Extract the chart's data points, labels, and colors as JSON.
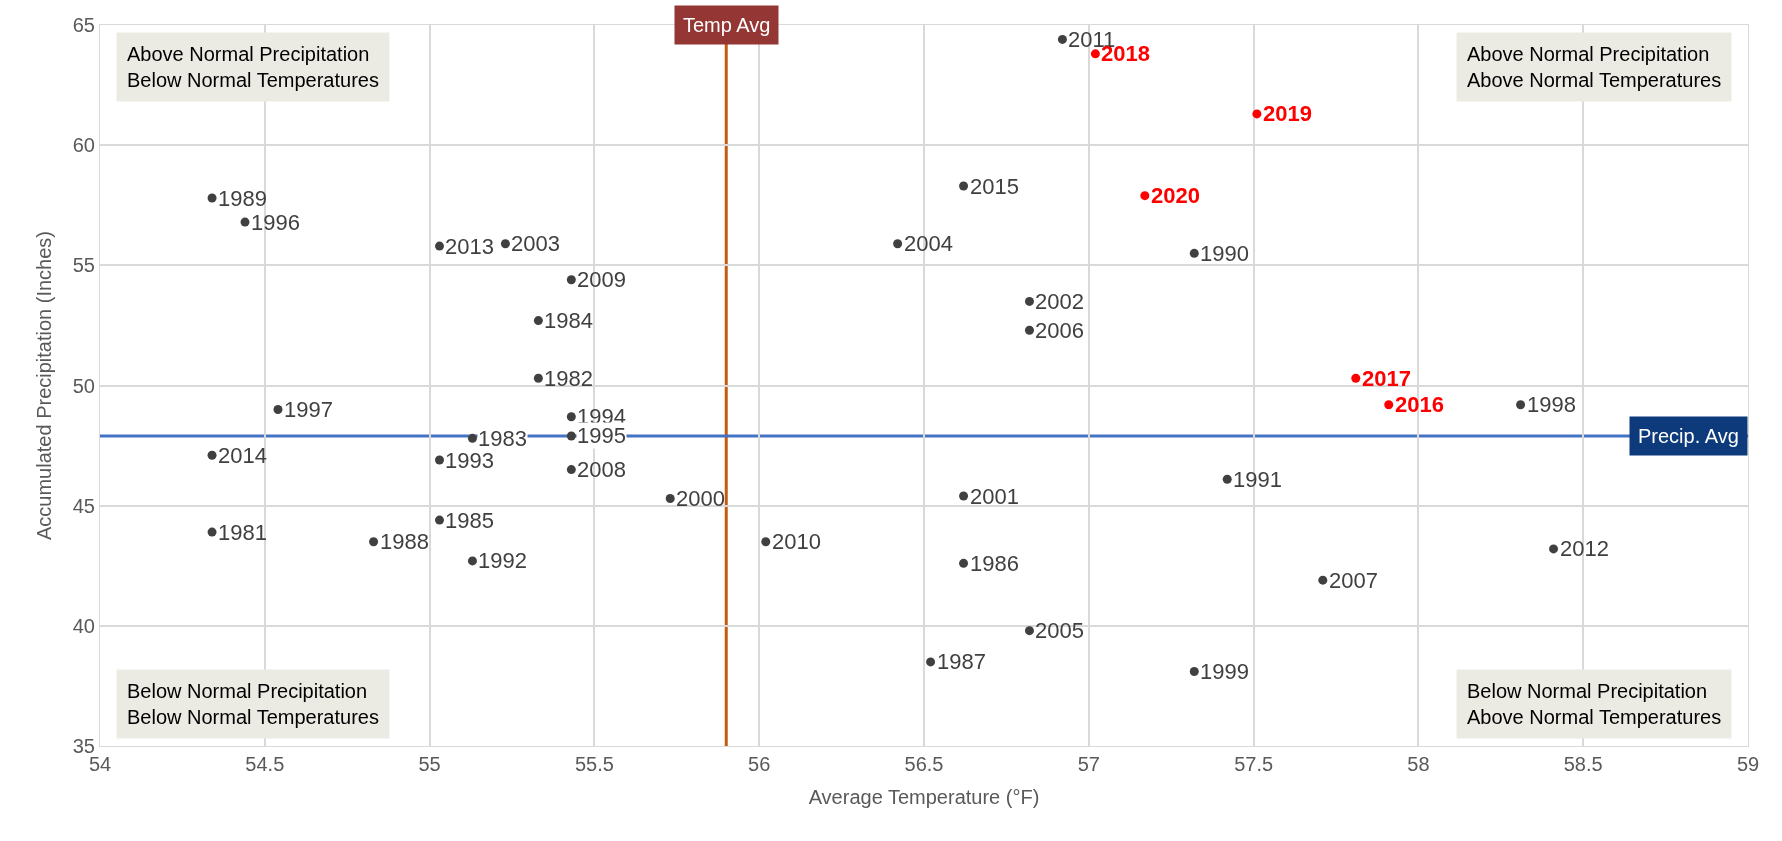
{
  "chart_data": {
    "type": "scatter",
    "xlabel": "Average Temperature (°F)",
    "ylabel": "Accumulated Precipitation (Inches)",
    "xlim": [
      54,
      59
    ],
    "xticks": [
      54,
      54.5,
      55,
      55.5,
      56,
      56.5,
      57,
      57.5,
      58,
      58.5,
      59
    ],
    "ylim": [
      35,
      65
    ],
    "yticks": [
      35,
      40,
      45,
      50,
      55,
      60,
      65
    ],
    "grid": true,
    "marker": "circle",
    "series": [
      {
        "color": "#404040",
        "x": [
          56.92,
          54.34,
          54.44,
          55.03,
          55.23,
          55.43,
          55.33,
          55.33,
          54.54,
          55.43,
          55.13,
          55.43,
          54.34,
          55.03,
          55.43,
          55.73,
          55.03,
          54.34,
          54.83,
          55.13,
          56.02,
          56.62,
          56.42,
          56.82,
          56.82,
          57.32,
          58.31,
          57.42,
          56.62,
          56.62,
          58.41,
          57.71,
          56.82,
          56.52,
          57.32
        ],
        "values": [
          64.4,
          57.8,
          56.8,
          55.8,
          55.9,
          54.4,
          52.7,
          50.3,
          49.0,
          48.7,
          47.8,
          47.9,
          47.1,
          46.9,
          46.5,
          45.3,
          44.4,
          43.9,
          43.5,
          42.7,
          43.5,
          58.3,
          55.9,
          53.5,
          52.3,
          55.5,
          49.2,
          46.1,
          45.4,
          42.6,
          43.2,
          41.9,
          39.8,
          38.5,
          38.1
        ]
      },
      {
        "color": "#ff0000",
        "x": [
          57.02,
          57.51,
          57.17,
          57.81,
          57.91
        ],
        "values": [
          63.8,
          61.3,
          57.9,
          50.3,
          49.2
        ]
      }
    ],
    "ref_lines": [
      {
        "axis": "x",
        "value": 55.9,
        "label": "Temp Avg",
        "color": "#c55a11"
      },
      {
        "axis": "y",
        "value": 47.9,
        "label": "Precip. Avg",
        "color": "#4472c4"
      }
    ],
    "annotations": [
      "Above Normal Precipitation\nBelow Normal Temperatures",
      "Above Normal Precipitation\nAbove Normal Temperatures",
      "Below Normal Precipitation\nBelow Normal Temperatures",
      "Below Normal Precipitation\nAbove Normal Temperatures",
      {
        "text": "2011",
        "x": 56.92,
        "y": 64.4
      },
      {
        "text": "1989",
        "x": 54.34,
        "y": 57.8
      },
      {
        "text": "1996",
        "x": 54.44,
        "y": 56.8
      },
      {
        "text": "2013",
        "x": 55.03,
        "y": 55.8
      },
      {
        "text": "2003",
        "x": 55.23,
        "y": 55.9
      },
      {
        "text": "2009",
        "x": 55.43,
        "y": 54.4
      },
      {
        "text": "1984",
        "x": 55.33,
        "y": 52.7
      },
      {
        "text": "1982",
        "x": 55.33,
        "y": 50.3
      },
      {
        "text": "1997",
        "x": 54.54,
        "y": 49.0
      },
      {
        "text": "1994",
        "x": 55.43,
        "y": 48.7
      },
      {
        "text": "1983",
        "x": 55.13,
        "y": 47.8
      },
      {
        "text": "1995",
        "x": 55.43,
        "y": 47.9
      },
      {
        "text": "2014",
        "x": 54.34,
        "y": 47.1
      },
      {
        "text": "1993",
        "x": 55.03,
        "y": 46.9
      },
      {
        "text": "2008",
        "x": 55.43,
        "y": 46.5
      },
      {
        "text": "2000",
        "x": 55.73,
        "y": 45.3
      },
      {
        "text": "1985",
        "x": 55.03,
        "y": 44.4
      },
      {
        "text": "1981",
        "x": 54.34,
        "y": 43.9
      },
      {
        "text": "1988",
        "x": 54.83,
        "y": 43.5
      },
      {
        "text": "1992",
        "x": 55.13,
        "y": 42.7
      },
      {
        "text": "2010",
        "x": 56.02,
        "y": 43.5
      },
      {
        "text": "2015",
        "x": 56.62,
        "y": 58.3
      },
      {
        "text": "2004",
        "x": 56.42,
        "y": 55.9
      },
      {
        "text": "2002",
        "x": 56.82,
        "y": 53.5
      },
      {
        "text": "2006",
        "x": 56.82,
        "y": 52.3
      },
      {
        "text": "1990",
        "x": 57.32,
        "y": 55.5
      },
      {
        "text": "1998",
        "x": 58.31,
        "y": 49.2
      },
      {
        "text": "1991",
        "x": 57.42,
        "y": 46.1
      },
      {
        "text": "2001",
        "x": 56.62,
        "y": 45.4
      },
      {
        "text": "1986",
        "x": 56.62,
        "y": 42.6
      },
      {
        "text": "2012",
        "x": 58.41,
        "y": 43.2
      },
      {
        "text": "2007",
        "x": 57.71,
        "y": 41.9
      },
      {
        "text": "2005",
        "x": 56.82,
        "y": 39.8
      },
      {
        "text": "1987",
        "x": 56.52,
        "y": 38.5
      },
      {
        "text": "1999",
        "x": 57.32,
        "y": 38.1
      },
      {
        "text": "2018",
        "x": 57.02,
        "y": 63.8
      },
      {
        "text": "2019",
        "x": 57.51,
        "y": 61.3
      },
      {
        "text": "2020",
        "x": 57.17,
        "y": 57.9
      },
      {
        "text": "2017",
        "x": 57.81,
        "y": 50.3
      },
      {
        "text": "2016",
        "x": 57.91,
        "y": 49.2
      }
    ]
  }
}
